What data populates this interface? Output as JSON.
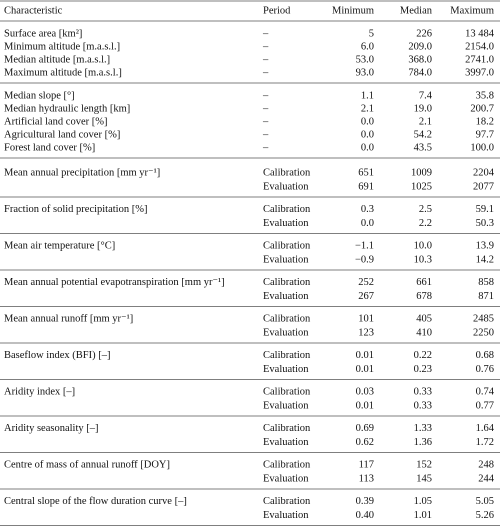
{
  "table": {
    "header": [
      "Characteristic",
      "Period",
      "Minimum",
      "Median",
      "Maximum"
    ],
    "groups": [
      {
        "rows": [
          [
            "Surface area [km²]",
            "–",
            "5",
            "226",
            "13 484"
          ],
          [
            "Minimum altitude [m.a.s.l.]",
            "–",
            "6.0",
            "209.0",
            "2154.0"
          ],
          [
            "Median altitude [m.a.s.l.]",
            "–",
            "53.0",
            "368.0",
            "2741.0"
          ],
          [
            "Maximum altitude [m.a.s.l.]",
            "–",
            "93.0",
            "784.0",
            "3997.0"
          ]
        ]
      },
      {
        "rows": [
          [
            "Median slope [°]",
            "–",
            "1.1",
            "7.4",
            "35.8"
          ],
          [
            "Median hydraulic length [km]",
            "–",
            "2.1",
            "19.0",
            "200.7"
          ],
          [
            "Artificial land cover [%]",
            "–",
            "0.0",
            "2.1",
            "18.2"
          ],
          [
            "Agricultural land cover [%]",
            "–",
            "0.0",
            "54.2",
            "97.7"
          ],
          [
            "Forest land cover [%]",
            "–",
            "0.0",
            "43.5",
            "100.0"
          ]
        ]
      },
      {
        "characteristic": "Mean annual precipitation [mm yr⁻¹]",
        "rows": [
          [
            "Calibration",
            "651",
            "1009",
            "2204"
          ],
          [
            "Evaluation",
            "691",
            "1025",
            "2077"
          ]
        ]
      },
      {
        "characteristic": "Fraction of solid precipitation [%]",
        "rows": [
          [
            "Calibration",
            "0.3",
            "2.5",
            "59.1"
          ],
          [
            "Evaluation",
            "0.0",
            "2.2",
            "50.3"
          ]
        ]
      },
      {
        "characteristic": "Mean air temperature [°C]",
        "rows": [
          [
            "Calibration",
            "−1.1",
            "10.0",
            "13.9"
          ],
          [
            "Evaluation",
            "−0.9",
            "10.3",
            "14.2"
          ]
        ]
      },
      {
        "characteristic": "Mean annual potential evapotranspiration [mm yr⁻¹]",
        "rows": [
          [
            "Calibration",
            "252",
            "661",
            "858"
          ],
          [
            "Evaluation",
            "267",
            "678",
            "871"
          ]
        ]
      },
      {
        "characteristic": "Mean annual runoff [mm yr⁻¹]",
        "rows": [
          [
            "Calibration",
            "101",
            "405",
            "2485"
          ],
          [
            "Evaluation",
            "123",
            "410",
            "2250"
          ]
        ]
      },
      {
        "characteristic": "Baseflow index (BFI) [–]",
        "rows": [
          [
            "Calibration",
            "0.01",
            "0.22",
            "0.68"
          ],
          [
            "Evaluation",
            "0.01",
            "0.23",
            "0.76"
          ]
        ]
      },
      {
        "characteristic": "Aridity index [–]",
        "rows": [
          [
            "Calibration",
            "0.03",
            "0.33",
            "0.74"
          ],
          [
            "Evaluation",
            "0.01",
            "0.33",
            "0.77"
          ]
        ]
      },
      {
        "characteristic": "Aridity seasonality [–]",
        "rows": [
          [
            "Calibration",
            "0.69",
            "1.33",
            "1.64"
          ],
          [
            "Evaluation",
            "0.62",
            "1.36",
            "1.72"
          ]
        ]
      },
      {
        "characteristic": "Centre of mass of annual runoff [DOY]",
        "rows": [
          [
            "Calibration",
            "117",
            "152",
            "248"
          ],
          [
            "Evaluation",
            "113",
            "145",
            "244"
          ]
        ]
      },
      {
        "characteristic": "Central slope of the flow duration curve [–]",
        "rows": [
          [
            "Calibration",
            "0.39",
            "1.05",
            "5.05"
          ],
          [
            "Evaluation",
            "0.40",
            "1.01",
            "5.26"
          ]
        ]
      }
    ]
  }
}
